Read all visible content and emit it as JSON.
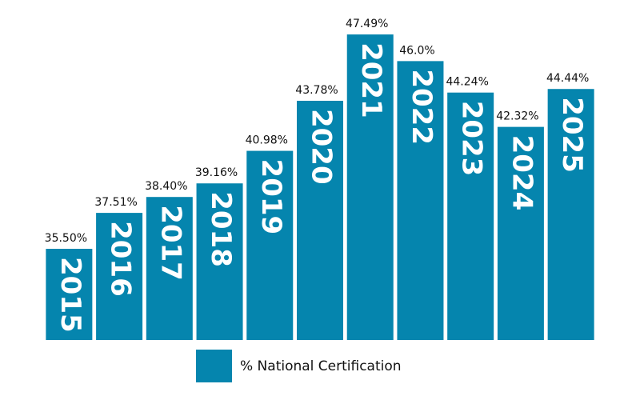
{
  "chart_data": {
    "type": "bar",
    "categories": [
      "2015",
      "2016",
      "2017",
      "2018",
      "2019",
      "2020",
      "2021",
      "2022",
      "2023",
      "2024",
      "2025"
    ],
    "series": [
      {
        "name": "% National Certification",
        "color": "#0585ae",
        "values": [
          35.5,
          37.51,
          38.4,
          39.16,
          40.98,
          43.78,
          47.49,
          46,
          44.24,
          42.32,
          44.44
        ],
        "value_labels": [
          "35.50%",
          "37.51%",
          "38.40%",
          "39.16%",
          "40.98%",
          "43.78%",
          "47.49%",
          "46.0%",
          "44.24%",
          "42.32%",
          "44.44%"
        ]
      }
    ],
    "ylim": [
      30.4,
      48.5
    ]
  }
}
